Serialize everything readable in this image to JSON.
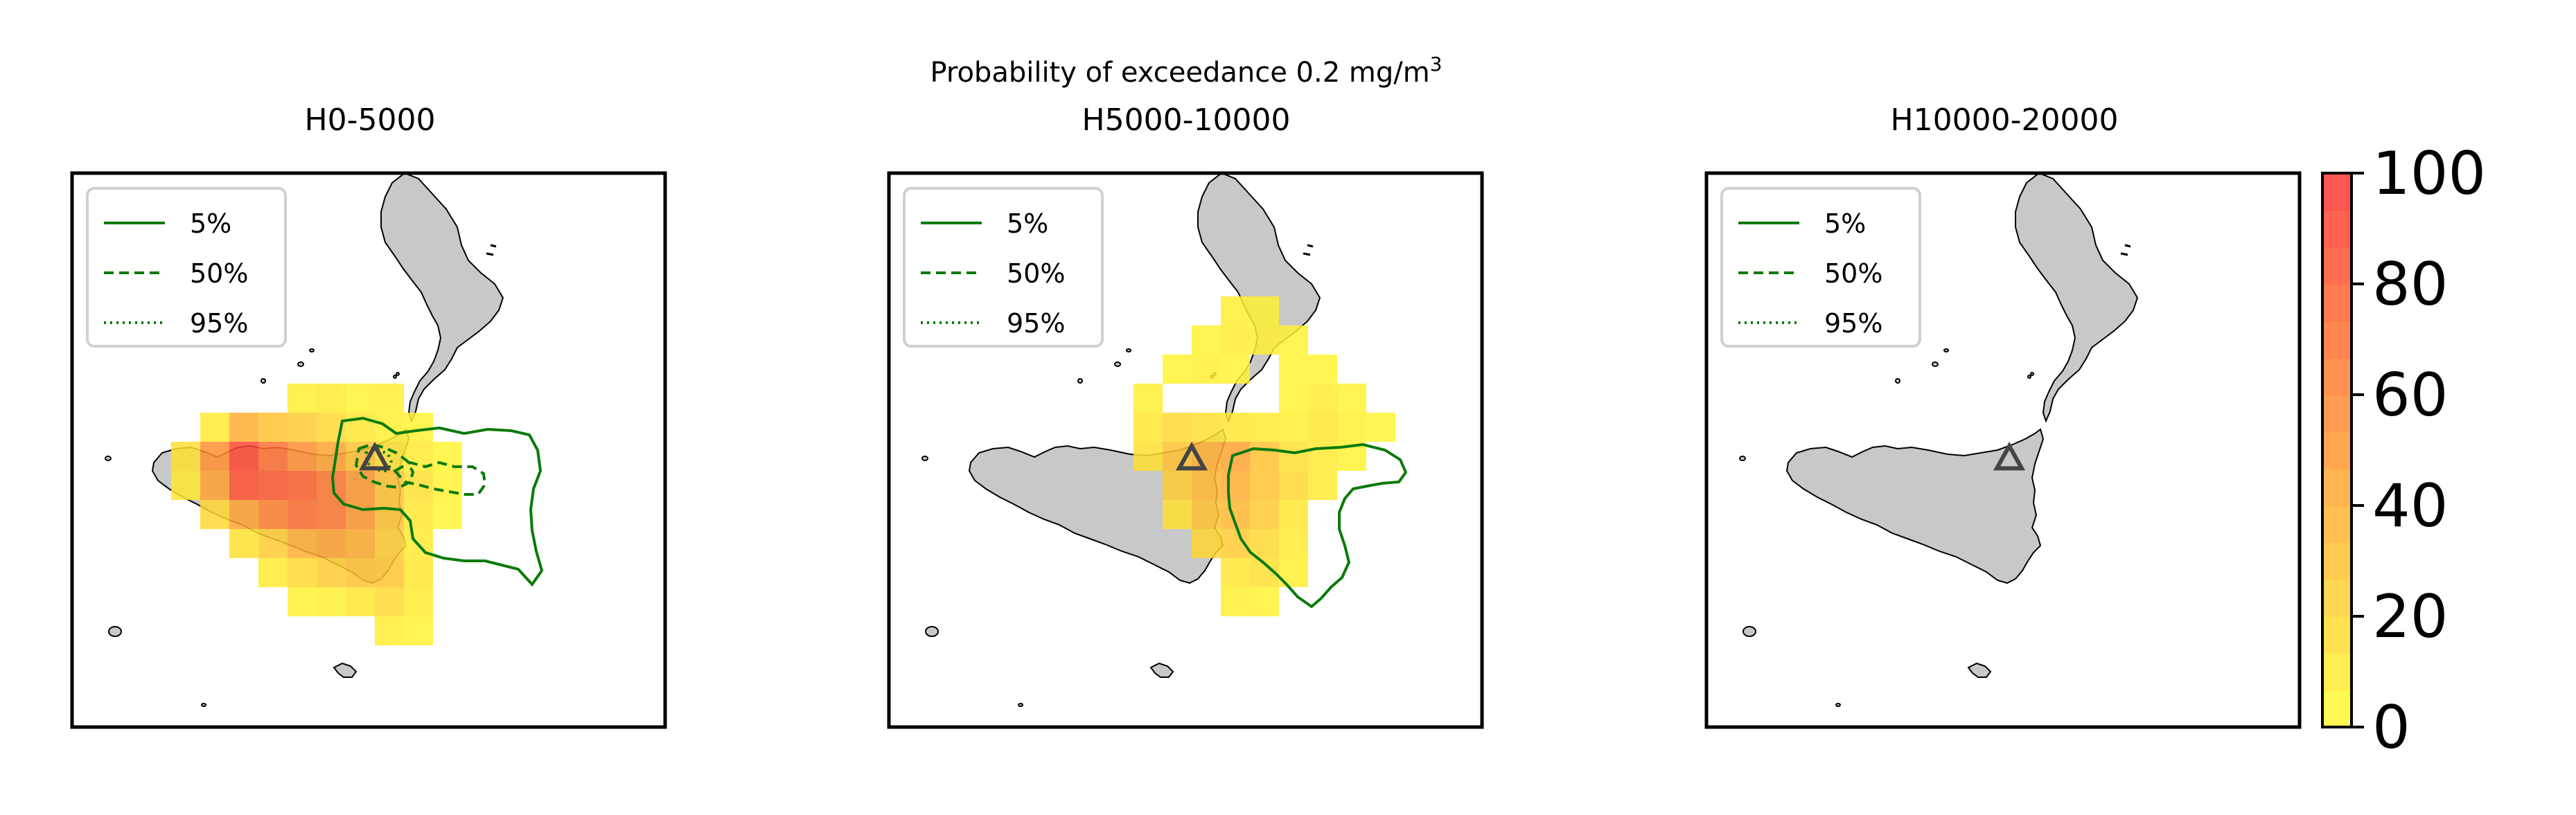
{
  "figure": {
    "title_main": "Probability of exceedance 0.2 mg/m",
    "title_sup": "3"
  },
  "chart_data": {
    "type": "heatmap",
    "title": "Probability of exceedance 0.2 mg/m3",
    "value_unit": "%",
    "colormap": {
      "from": "#ffff33",
      "to": "#ff3333",
      "alpha": 0.85
    },
    "colorbar": {
      "range": [
        0,
        100
      ],
      "ticks": [
        "0",
        "20",
        "40",
        "60",
        "80",
        "100"
      ]
    },
    "land_color": "#c8c8c8",
    "contour_color": "#0a7a0a",
    "legend": {
      "placement": "top-left",
      "entries": [
        {
          "label": "5%",
          "style": "solid"
        },
        {
          "label": "50%",
          "style": "dashed"
        },
        {
          "label": "95%",
          "style": "dotted"
        }
      ]
    },
    "vent_marker": "triangle",
    "panels": [
      {
        "title": "H0-5000",
        "cells": [
          {
            "col": 0,
            "row": 0,
            "p": 8
          },
          {
            "col": 1,
            "row": 0,
            "p": 10
          },
          {
            "col": 2,
            "row": 0,
            "p": 6
          },
          {
            "col": 3,
            "row": 0,
            "p": 8
          },
          {
            "col": -3,
            "row": 1,
            "p": 10
          },
          {
            "col": -2,
            "row": 1,
            "p": 40
          },
          {
            "col": -1,
            "row": 1,
            "p": 30
          },
          {
            "col": 0,
            "row": 1,
            "p": 25
          },
          {
            "col": 1,
            "row": 1,
            "p": 18
          },
          {
            "col": 2,
            "row": 1,
            "p": 12
          },
          {
            "col": 3,
            "row": 1,
            "p": 8
          },
          {
            "col": 4,
            "row": 1,
            "p": 6
          },
          {
            "col": -4,
            "row": 2,
            "p": 15
          },
          {
            "col": -3,
            "row": 2,
            "p": 55
          },
          {
            "col": -2,
            "row": 2,
            "p": 90
          },
          {
            "col": -1,
            "row": 2,
            "p": 70
          },
          {
            "col": 0,
            "row": 2,
            "p": 55
          },
          {
            "col": 1,
            "row": 2,
            "p": 45
          },
          {
            "col": 2,
            "row": 2,
            "p": 30
          },
          {
            "col": 3,
            "row": 2,
            "p": 15
          },
          {
            "col": 4,
            "row": 2,
            "p": 10
          },
          {
            "col": 5,
            "row": 2,
            "p": 5
          },
          {
            "col": -4,
            "row": 3,
            "p": 12
          },
          {
            "col": -3,
            "row": 3,
            "p": 45
          },
          {
            "col": -2,
            "row": 3,
            "p": 85
          },
          {
            "col": -1,
            "row": 3,
            "p": 80
          },
          {
            "col": 0,
            "row": 3,
            "p": 75
          },
          {
            "col": 1,
            "row": 3,
            "p": 65
          },
          {
            "col": 2,
            "row": 3,
            "p": 50
          },
          {
            "col": 3,
            "row": 3,
            "p": 30
          },
          {
            "col": 4,
            "row": 3,
            "p": 15
          },
          {
            "col": 5,
            "row": 3,
            "p": 6
          },
          {
            "col": -3,
            "row": 4,
            "p": 20
          },
          {
            "col": -2,
            "row": 4,
            "p": 45
          },
          {
            "col": -1,
            "row": 4,
            "p": 60
          },
          {
            "col": 0,
            "row": 4,
            "p": 70
          },
          {
            "col": 1,
            "row": 4,
            "p": 65
          },
          {
            "col": 2,
            "row": 4,
            "p": 50
          },
          {
            "col": 3,
            "row": 4,
            "p": 30
          },
          {
            "col": 4,
            "row": 4,
            "p": 12
          },
          {
            "col": 5,
            "row": 4,
            "p": 5
          },
          {
            "col": -2,
            "row": 5,
            "p": 15
          },
          {
            "col": -1,
            "row": 5,
            "p": 25
          },
          {
            "col": 0,
            "row": 5,
            "p": 40
          },
          {
            "col": 1,
            "row": 5,
            "p": 45
          },
          {
            "col": 2,
            "row": 5,
            "p": 40
          },
          {
            "col": 3,
            "row": 5,
            "p": 25
          },
          {
            "col": 4,
            "row": 5,
            "p": 10
          },
          {
            "col": -1,
            "row": 6,
            "p": 10
          },
          {
            "col": 0,
            "row": 6,
            "p": 18
          },
          {
            "col": 1,
            "row": 6,
            "p": 25
          },
          {
            "col": 2,
            "row": 6,
            "p": 30
          },
          {
            "col": 3,
            "row": 6,
            "p": 28
          },
          {
            "col": 4,
            "row": 6,
            "p": 12
          },
          {
            "col": 0,
            "row": 7,
            "p": 6
          },
          {
            "col": 1,
            "row": 7,
            "p": 8
          },
          {
            "col": 2,
            "row": 7,
            "p": 12
          },
          {
            "col": 3,
            "row": 7,
            "p": 18
          },
          {
            "col": 4,
            "row": 7,
            "p": 10
          },
          {
            "col": 3,
            "row": 8,
            "p": 8
          },
          {
            "col": 4,
            "row": 8,
            "p": 6
          }
        ]
      },
      {
        "title": "H5000-10000",
        "cells": [
          {
            "col": 4,
            "row": -3,
            "p": 8
          },
          {
            "col": 5,
            "row": -3,
            "p": 6
          },
          {
            "col": 3,
            "row": -2,
            "p": 6
          },
          {
            "col": 4,
            "row": -2,
            "p": 10
          },
          {
            "col": 5,
            "row": -2,
            "p": 8
          },
          {
            "col": 6,
            "row": -2,
            "p": 6
          },
          {
            "col": 2,
            "row": -1,
            "p": 5
          },
          {
            "col": 3,
            "row": -1,
            "p": 8
          },
          {
            "col": 4,
            "row": -1,
            "p": 6
          },
          {
            "col": 6,
            "row": -1,
            "p": 6
          },
          {
            "col": 7,
            "row": -1,
            "p": 5
          },
          {
            "col": 1,
            "row": 0,
            "p": 8
          },
          {
            "col": 6,
            "row": 0,
            "p": 6
          },
          {
            "col": 7,
            "row": 0,
            "p": 10
          },
          {
            "col": 8,
            "row": 0,
            "p": 6
          },
          {
            "col": 1,
            "row": 1,
            "p": 12
          },
          {
            "col": 2,
            "row": 1,
            "p": 18
          },
          {
            "col": 3,
            "row": 1,
            "p": 15
          },
          {
            "col": 4,
            "row": 1,
            "p": 12
          },
          {
            "col": 5,
            "row": 1,
            "p": 10
          },
          {
            "col": 6,
            "row": 1,
            "p": 8
          },
          {
            "col": 7,
            "row": 1,
            "p": 12
          },
          {
            "col": 8,
            "row": 1,
            "p": 8
          },
          {
            "col": 9,
            "row": 1,
            "p": 5
          },
          {
            "col": 1,
            "row": 2,
            "p": 15
          },
          {
            "col": 2,
            "row": 2,
            "p": 30
          },
          {
            "col": 3,
            "row": 2,
            "p": 40
          },
          {
            "col": 4,
            "row": 2,
            "p": 45
          },
          {
            "col": 5,
            "row": 2,
            "p": 30
          },
          {
            "col": 6,
            "row": 2,
            "p": 15
          },
          {
            "col": 7,
            "row": 2,
            "p": 10
          },
          {
            "col": 8,
            "row": 2,
            "p": 6
          },
          {
            "col": 2,
            "row": 3,
            "p": 25
          },
          {
            "col": 3,
            "row": 3,
            "p": 35
          },
          {
            "col": 4,
            "row": 3,
            "p": 40
          },
          {
            "col": 5,
            "row": 3,
            "p": 30
          },
          {
            "col": 6,
            "row": 3,
            "p": 18
          },
          {
            "col": 7,
            "row": 3,
            "p": 10
          },
          {
            "col": 2,
            "row": 4,
            "p": 15
          },
          {
            "col": 3,
            "row": 4,
            "p": 30
          },
          {
            "col": 4,
            "row": 4,
            "p": 35
          },
          {
            "col": 5,
            "row": 4,
            "p": 25
          },
          {
            "col": 6,
            "row": 4,
            "p": 12
          },
          {
            "col": 3,
            "row": 5,
            "p": 20
          },
          {
            "col": 4,
            "row": 5,
            "p": 25
          },
          {
            "col": 5,
            "row": 5,
            "p": 18
          },
          {
            "col": 6,
            "row": 5,
            "p": 10
          },
          {
            "col": 4,
            "row": 6,
            "p": 12
          },
          {
            "col": 5,
            "row": 6,
            "p": 15
          },
          {
            "col": 6,
            "row": 6,
            "p": 8
          },
          {
            "col": 4,
            "row": 7,
            "p": 8
          },
          {
            "col": 5,
            "row": 7,
            "p": 6
          }
        ]
      },
      {
        "title": "H10000-20000",
        "cells": []
      }
    ]
  }
}
